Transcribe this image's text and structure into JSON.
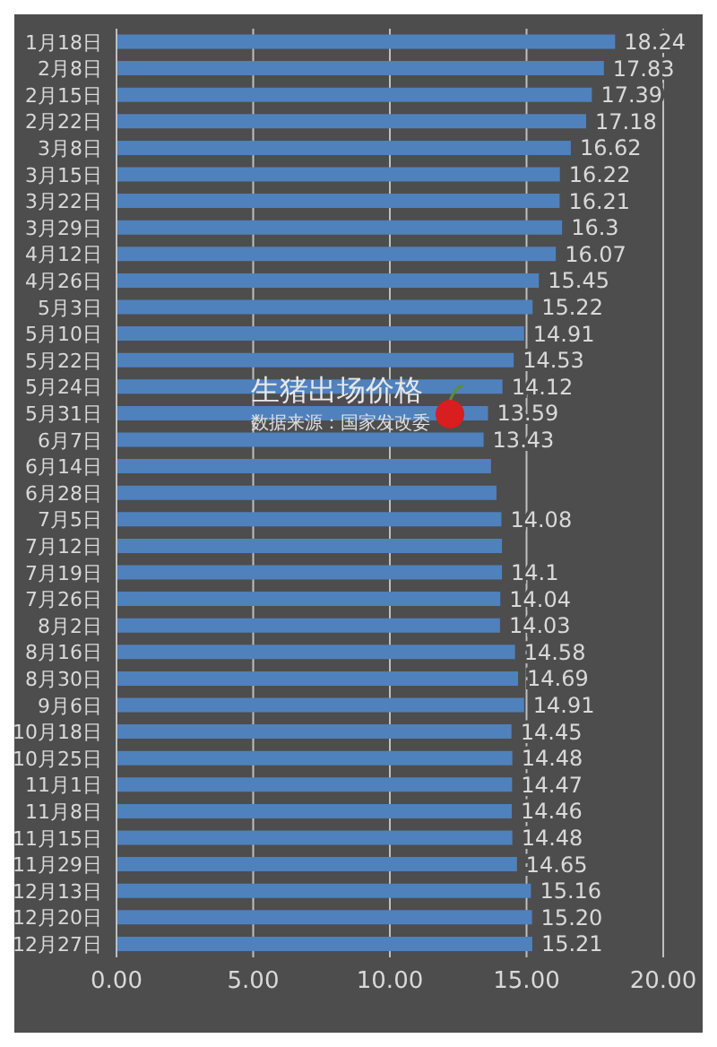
{
  "chart_data": {
    "type": "bar",
    "orientation": "horizontal",
    "title": "生猪出场价格",
    "subtitle": "数据来源：国家发改委",
    "categories": [
      "1月18日",
      "2月8日",
      "2月15日",
      "2月22日",
      "3月8日",
      "3月15日",
      "3月22日",
      "3月29日",
      "4月12日",
      "4月26日",
      "5月3日",
      "5月10日",
      "5月22日",
      "5月24日",
      "5月31日",
      "6月7日",
      "6月14日",
      "6月28日",
      "7月5日",
      "7月12日",
      "7月19日",
      "7月26日",
      "8月2日",
      "8月16日",
      "8月30日",
      "9月6日",
      "10月18日",
      "10月25日",
      "11月1日",
      "11月8日",
      "11月15日",
      "11月29日",
      "12月13日",
      "12月20日",
      "12月27日"
    ],
    "values": [
      18.24,
      17.83,
      17.39,
      17.18,
      16.62,
      16.22,
      16.21,
      16.3,
      16.07,
      15.45,
      15.22,
      14.91,
      14.53,
      14.12,
      13.59,
      13.43,
      13.7,
      13.9,
      14.08,
      14.1,
      14.1,
      14.04,
      14.03,
      14.58,
      14.69,
      14.91,
      14.45,
      14.48,
      14.47,
      14.46,
      14.48,
      14.65,
      15.16,
      15.2,
      15.21
    ],
    "value_labels": [
      "18.24",
      "17.83",
      "17.39",
      "17.18",
      "16.62",
      "16.22",
      "16.21",
      "16.3",
      "16.07",
      "15.45",
      "15.22",
      "14.91",
      "14.53",
      "14.12",
      "13.59",
      "13.43",
      null,
      null,
      "14.08",
      null,
      "14.1",
      "14.04",
      "14.03",
      "14.58",
      "14.69",
      "14.91",
      "14.45",
      "14.48",
      "14.47",
      "14.46",
      "14.48",
      "14.65",
      "15.16",
      "15.20",
      "15.21"
    ],
    "color": "#4f81bd",
    "xlim": [
      0,
      20
    ],
    "xticks": [
      {
        "value": 0,
        "label": "0.00"
      },
      {
        "value": 5,
        "label": "5.00"
      },
      {
        "value": 10,
        "label": "10.00"
      },
      {
        "value": 15,
        "label": "15.00"
      },
      {
        "value": 20,
        "label": "20.00"
      }
    ],
    "grid": "x"
  }
}
